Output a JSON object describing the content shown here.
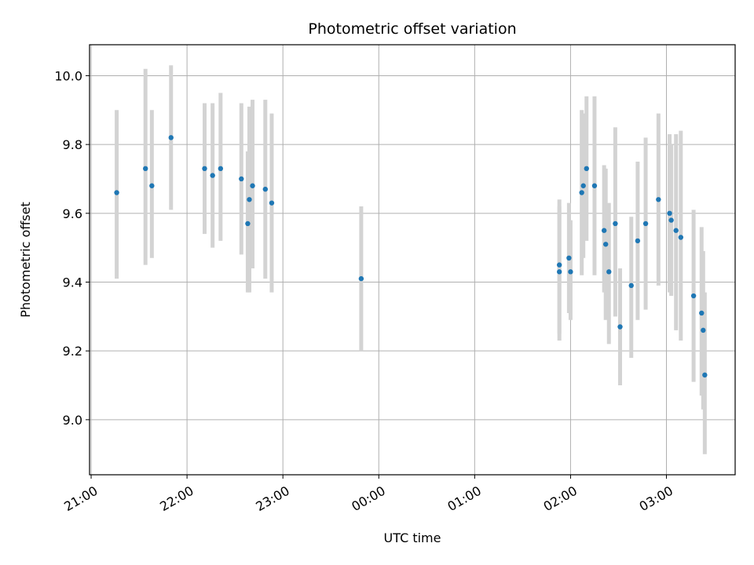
{
  "chart_data": {
    "type": "scatter",
    "title": "Photometric offset variation",
    "xlabel": "UTC time",
    "ylabel": "Photometric offset",
    "x_unit": "UTC time (HH:MM)",
    "xlim": [
      "20:59",
      "03:43"
    ],
    "ylim": [
      8.84,
      10.09
    ],
    "x_tick_labels": [
      "21:00",
      "22:00",
      "23:00",
      "00:00",
      "01:00",
      "02:00",
      "03:00"
    ],
    "y_tick_labels": [
      "9.0",
      "9.2",
      "9.4",
      "9.6",
      "9.8",
      "10.0"
    ],
    "grid": true,
    "legend": "none",
    "colors": {
      "points": "#1f77b4",
      "errorbars": "#d3d3d3",
      "grid": "#b0b0b0"
    },
    "series": [
      {
        "points": [
          {
            "x": "21:16",
            "y": 9.66,
            "ylow": 9.41,
            "yhigh": 9.9
          },
          {
            "x": "21:34",
            "y": 9.73,
            "ylow": 9.45,
            "yhigh": 10.02
          },
          {
            "x": "21:38",
            "y": 9.68,
            "ylow": 9.47,
            "yhigh": 9.9
          },
          {
            "x": "21:50",
            "y": 9.82,
            "ylow": 9.61,
            "yhigh": 10.03
          },
          {
            "x": "22:11",
            "y": 9.73,
            "ylow": 9.54,
            "yhigh": 9.92
          },
          {
            "x": "22:16",
            "y": 9.71,
            "ylow": 9.5,
            "yhigh": 9.92
          },
          {
            "x": "22:21",
            "y": 9.73,
            "ylow": 9.52,
            "yhigh": 9.95
          },
          {
            "x": "22:34",
            "y": 9.7,
            "ylow": 9.48,
            "yhigh": 9.92
          },
          {
            "x": "22:38",
            "y": 9.57,
            "ylow": 9.37,
            "yhigh": 9.78
          },
          {
            "x": "22:39",
            "y": 9.64,
            "ylow": 9.37,
            "yhigh": 9.91
          },
          {
            "x": "22:41",
            "y": 9.68,
            "ylow": 9.44,
            "yhigh": 9.93
          },
          {
            "x": "22:49",
            "y": 9.67,
            "ylow": 9.41,
            "yhigh": 9.93
          },
          {
            "x": "22:53",
            "y": 9.63,
            "ylow": 9.37,
            "yhigh": 9.89
          },
          {
            "x": "23:49",
            "y": 9.41,
            "ylow": 9.2,
            "yhigh": 9.62
          },
          {
            "x": "01:53",
            "y": 9.45,
            "ylow": 9.23,
            "yhigh": 9.64
          },
          {
            "x": "01:53",
            "y": 9.43,
            "ylow": 9.25,
            "yhigh": 9.62
          },
          {
            "x": "01:59",
            "y": 9.47,
            "ylow": 9.31,
            "yhigh": 9.63
          },
          {
            "x": "02:00",
            "y": 9.43,
            "ylow": 9.29,
            "yhigh": 9.58
          },
          {
            "x": "02:07",
            "y": 9.66,
            "ylow": 9.42,
            "yhigh": 9.9
          },
          {
            "x": "02:08",
            "y": 9.68,
            "ylow": 9.47,
            "yhigh": 9.89
          },
          {
            "x": "02:10",
            "y": 9.73,
            "ylow": 9.52,
            "yhigh": 9.94
          },
          {
            "x": "02:15",
            "y": 9.68,
            "ylow": 9.42,
            "yhigh": 9.94
          },
          {
            "x": "02:21",
            "y": 9.55,
            "ylow": 9.37,
            "yhigh": 9.74
          },
          {
            "x": "02:22",
            "y": 9.51,
            "ylow": 9.29,
            "yhigh": 9.73
          },
          {
            "x": "02:24",
            "y": 9.43,
            "ylow": 9.22,
            "yhigh": 9.63
          },
          {
            "x": "02:28",
            "y": 9.57,
            "ylow": 9.3,
            "yhigh": 9.85
          },
          {
            "x": "02:31",
            "y": 9.27,
            "ylow": 9.1,
            "yhigh": 9.44
          },
          {
            "x": "02:38",
            "y": 9.39,
            "ylow": 9.18,
            "yhigh": 9.59
          },
          {
            "x": "02:42",
            "y": 9.52,
            "ylow": 9.29,
            "yhigh": 9.75
          },
          {
            "x": "02:47",
            "y": 9.57,
            "ylow": 9.32,
            "yhigh": 9.82
          },
          {
            "x": "02:55",
            "y": 9.64,
            "ylow": 9.39,
            "yhigh": 9.89
          },
          {
            "x": "03:02",
            "y": 9.6,
            "ylow": 9.37,
            "yhigh": 9.83
          },
          {
            "x": "03:03",
            "y": 9.58,
            "ylow": 9.36,
            "yhigh": 9.8
          },
          {
            "x": "03:06",
            "y": 9.55,
            "ylow": 9.26,
            "yhigh": 9.83
          },
          {
            "x": "03:09",
            "y": 9.53,
            "ylow": 9.23,
            "yhigh": 9.84
          },
          {
            "x": "03:17",
            "y": 9.36,
            "ylow": 9.11,
            "yhigh": 9.61
          },
          {
            "x": "03:22",
            "y": 9.31,
            "ylow": 9.07,
            "yhigh": 9.56
          },
          {
            "x": "03:23",
            "y": 9.26,
            "ylow": 9.03,
            "yhigh": 9.49
          },
          {
            "x": "03:24",
            "y": 9.13,
            "ylow": 8.9,
            "yhigh": 9.37
          }
        ]
      }
    ]
  }
}
